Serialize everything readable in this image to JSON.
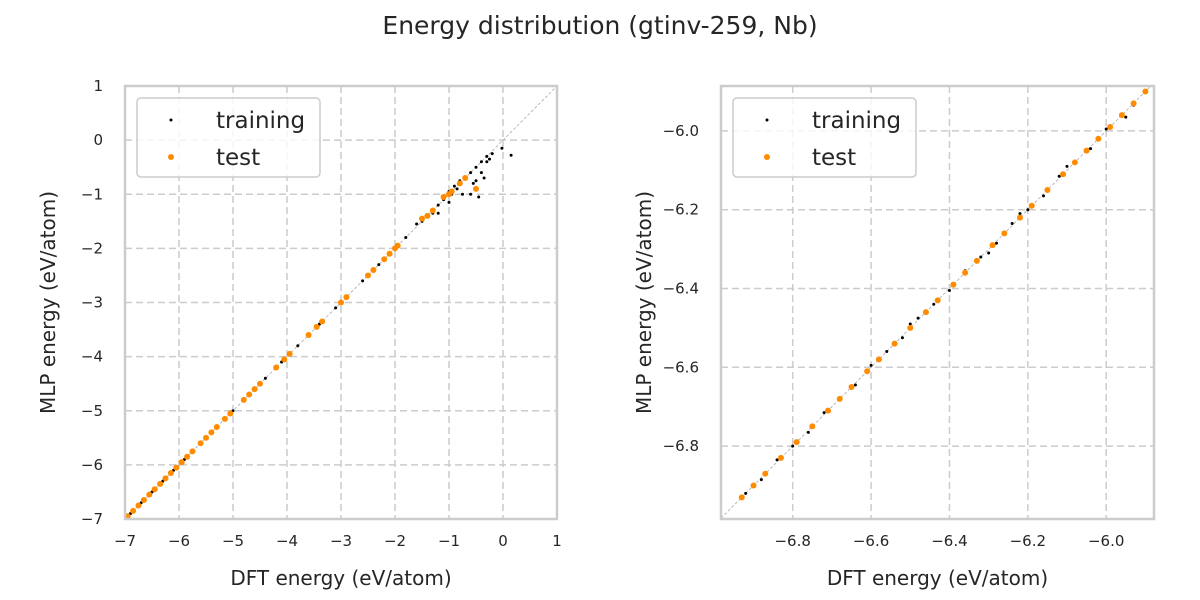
{
  "chart_data": {
    "title": "Energy distribution (gtinv-259, Nb)",
    "colors": {
      "training": "#000000",
      "test": "#ff8c00",
      "grid": "#cccccc",
      "diagonal": "#aaaaaa"
    },
    "panels": [
      {
        "type": "scatter",
        "xlabel": "DFT energy (eV/atom)",
        "ylabel": "MLP energy (eV/atom)",
        "xlim": [
          -7,
          1
        ],
        "ylim": [
          -7,
          1
        ],
        "xticks": [
          -7,
          -6,
          -5,
          -4,
          -3,
          -2,
          -1,
          0,
          1
        ],
        "yticks": [
          -7,
          -6,
          -5,
          -4,
          -3,
          -2,
          -1,
          0,
          1
        ],
        "xtick_labels": [
          "−7",
          "−6",
          "−5",
          "−4",
          "−3",
          "−2",
          "−1",
          "0",
          "1"
        ],
        "ytick_labels": [
          "−7",
          "−6",
          "−5",
          "−4",
          "−3",
          "−2",
          "−1",
          "0",
          "1"
        ],
        "grid": true,
        "legend": "top-left",
        "diagonal": true,
        "series": [
          {
            "name": "training",
            "points": [
              [
                -6.9,
                -6.9
              ],
              [
                -6.7,
                -6.7
              ],
              [
                -6.5,
                -6.5
              ],
              [
                -6.3,
                -6.3
              ],
              [
                -6.1,
                -6.1
              ],
              [
                -5.9,
                -5.9
              ],
              [
                -5.6,
                -5.6
              ],
              [
                -5.3,
                -5.3
              ],
              [
                -5.0,
                -5.0
              ],
              [
                -4.7,
                -4.7
              ],
              [
                -4.4,
                -4.4
              ],
              [
                -4.1,
                -4.1
              ],
              [
                -3.8,
                -3.8
              ],
              [
                -3.4,
                -3.4
              ],
              [
                -3.1,
                -3.1
              ],
              [
                -2.9,
                -2.9
              ],
              [
                -2.6,
                -2.6
              ],
              [
                -2.3,
                -2.3
              ],
              [
                -2.0,
                -2.0
              ],
              [
                -1.8,
                -1.8
              ],
              [
                -1.6,
                -1.55
              ],
              [
                -1.5,
                -1.5
              ],
              [
                -1.4,
                -1.4
              ],
              [
                -1.3,
                -1.35
              ],
              [
                -1.2,
                -1.2
              ],
              [
                -1.1,
                -1.1
              ],
              [
                -1.0,
                -0.95
              ],
              [
                -0.95,
                -1.0
              ],
              [
                -0.9,
                -0.85
              ],
              [
                -0.85,
                -0.9
              ],
              [
                -0.8,
                -0.75
              ],
              [
                -0.75,
                -1.0
              ],
              [
                -0.7,
                -0.7
              ],
              [
                -0.6,
                -0.6
              ],
              [
                -0.55,
                -0.8
              ],
              [
                -0.5,
                -0.5
              ],
              [
                -0.45,
                -1.05
              ],
              [
                -0.4,
                -0.4
              ],
              [
                -0.35,
                -0.7
              ],
              [
                -0.3,
                -0.3
              ],
              [
                -0.25,
                -0.35
              ],
              [
                -0.2,
                -0.25
              ],
              [
                -0.02,
                -0.15
              ],
              [
                0.15,
                -0.28
              ],
              [
                -0.6,
                -1.0
              ],
              [
                -1.2,
                -1.35
              ],
              [
                -1.0,
                -1.15
              ],
              [
                -0.5,
                -0.75
              ],
              [
                -0.4,
                -0.6
              ],
              [
                -0.3,
                -0.4
              ]
            ]
          },
          {
            "name": "test",
            "points": [
              [
                -6.95,
                -6.95
              ],
              [
                -6.85,
                -6.85
              ],
              [
                -6.75,
                -6.75
              ],
              [
                -6.65,
                -6.65
              ],
              [
                -6.55,
                -6.55
              ],
              [
                -6.45,
                -6.45
              ],
              [
                -6.35,
                -6.35
              ],
              [
                -6.25,
                -6.25
              ],
              [
                -6.15,
                -6.15
              ],
              [
                -6.05,
                -6.05
              ],
              [
                -5.95,
                -5.95
              ],
              [
                -5.85,
                -5.85
              ],
              [
                -5.75,
                -5.75
              ],
              [
                -5.6,
                -5.6
              ],
              [
                -5.5,
                -5.5
              ],
              [
                -5.4,
                -5.4
              ],
              [
                -5.3,
                -5.3
              ],
              [
                -5.15,
                -5.15
              ],
              [
                -5.05,
                -5.05
              ],
              [
                -4.8,
                -4.8
              ],
              [
                -4.7,
                -4.7
              ],
              [
                -4.6,
                -4.6
              ],
              [
                -4.5,
                -4.5
              ],
              [
                -4.2,
                -4.2
              ],
              [
                -4.05,
                -4.05
              ],
              [
                -3.95,
                -3.95
              ],
              [
                -3.6,
                -3.6
              ],
              [
                -3.45,
                -3.45
              ],
              [
                -3.35,
                -3.35
              ],
              [
                -3.0,
                -3.0
              ],
              [
                -2.9,
                -2.9
              ],
              [
                -2.5,
                -2.5
              ],
              [
                -2.4,
                -2.4
              ],
              [
                -2.2,
                -2.2
              ],
              [
                -2.1,
                -2.1
              ],
              [
                -2.0,
                -2.0
              ],
              [
                -1.95,
                -1.95
              ],
              [
                -1.5,
                -1.45
              ],
              [
                -1.4,
                -1.4
              ],
              [
                -1.3,
                -1.3
              ],
              [
                -1.1,
                -1.05
              ],
              [
                -1.0,
                -1.0
              ],
              [
                -0.95,
                -0.95
              ],
              [
                -0.8,
                -0.8
              ],
              [
                -0.7,
                -0.7
              ],
              [
                -0.5,
                -0.9
              ]
            ]
          }
        ]
      },
      {
        "type": "scatter",
        "xlabel": "DFT energy (eV/atom)",
        "ylabel": "MLP energy (eV/atom)",
        "xlim": [
          -6.983,
          -5.878
        ],
        "ylim": [
          -6.985,
          -5.886
        ],
        "xticks": [
          -6.8,
          -6.6,
          -6.4,
          -6.2,
          -6.0
        ],
        "yticks": [
          -6.8,
          -6.6,
          -6.4,
          -6.2,
          -6.0
        ],
        "xtick_labels": [
          "−6.8",
          "−6.6",
          "−6.4",
          "−6.2",
          "−6.0"
        ],
        "ytick_labels": [
          "−6.8",
          "−6.6",
          "−6.4",
          "−6.2",
          "−6.0"
        ],
        "grid": true,
        "legend": "top-left",
        "diagonal": true,
        "series": [
          {
            "name": "training",
            "points": [
              [
                -6.92,
                -6.92
              ],
              [
                -6.88,
                -6.885
              ],
              [
                -6.84,
                -6.835
              ],
              [
                -6.8,
                -6.8
              ],
              [
                -6.76,
                -6.765
              ],
              [
                -6.72,
                -6.715
              ],
              [
                -6.68,
                -6.68
              ],
              [
                -6.64,
                -6.645
              ],
              [
                -6.6,
                -6.595
              ],
              [
                -6.56,
                -6.56
              ],
              [
                -6.52,
                -6.525
              ],
              [
                -6.48,
                -6.475
              ],
              [
                -6.44,
                -6.44
              ],
              [
                -6.4,
                -6.405
              ],
              [
                -6.36,
                -6.355
              ],
              [
                -6.32,
                -6.32
              ],
              [
                -6.28,
                -6.285
              ],
              [
                -6.24,
                -6.235
              ],
              [
                -6.2,
                -6.2
              ],
              [
                -6.16,
                -6.165
              ],
              [
                -6.12,
                -6.115
              ],
              [
                -6.08,
                -6.08
              ],
              [
                -6.04,
                -6.045
              ],
              [
                -6.0,
                -5.995
              ],
              [
                -5.96,
                -5.96
              ],
              [
                -5.93,
                -5.935
              ],
              [
                -5.9,
                -5.9
              ],
              [
                -6.22,
                -6.21
              ],
              [
                -6.1,
                -6.09
              ],
              [
                -6.3,
                -6.31
              ],
              [
                -6.5,
                -6.49
              ],
              [
                -5.95,
                -5.965
              ]
            ]
          },
          {
            "name": "test",
            "points": [
              [
                -6.93,
                -6.93
              ],
              [
                -6.9,
                -6.9
              ],
              [
                -6.87,
                -6.87
              ],
              [
                -6.83,
                -6.83
              ],
              [
                -6.79,
                -6.79
              ],
              [
                -6.75,
                -6.75
              ],
              [
                -6.71,
                -6.71
              ],
              [
                -6.68,
                -6.68
              ],
              [
                -6.65,
                -6.65
              ],
              [
                -6.61,
                -6.61
              ],
              [
                -6.58,
                -6.58
              ],
              [
                -6.54,
                -6.54
              ],
              [
                -6.5,
                -6.5
              ],
              [
                -6.46,
                -6.46
              ],
              [
                -6.43,
                -6.43
              ],
              [
                -6.39,
                -6.39
              ],
              [
                -6.36,
                -6.36
              ],
              [
                -6.33,
                -6.33
              ],
              [
                -6.29,
                -6.29
              ],
              [
                -6.26,
                -6.26
              ],
              [
                -6.22,
                -6.22
              ],
              [
                -6.19,
                -6.19
              ],
              [
                -6.15,
                -6.15
              ],
              [
                -6.11,
                -6.11
              ],
              [
                -6.08,
                -6.08
              ],
              [
                -6.05,
                -6.05
              ],
              [
                -6.02,
                -6.02
              ],
              [
                -5.99,
                -5.99
              ],
              [
                -5.96,
                -5.96
              ],
              [
                -5.93,
                -5.93
              ],
              [
                -5.9,
                -5.9
              ]
            ]
          }
        ]
      }
    ]
  }
}
